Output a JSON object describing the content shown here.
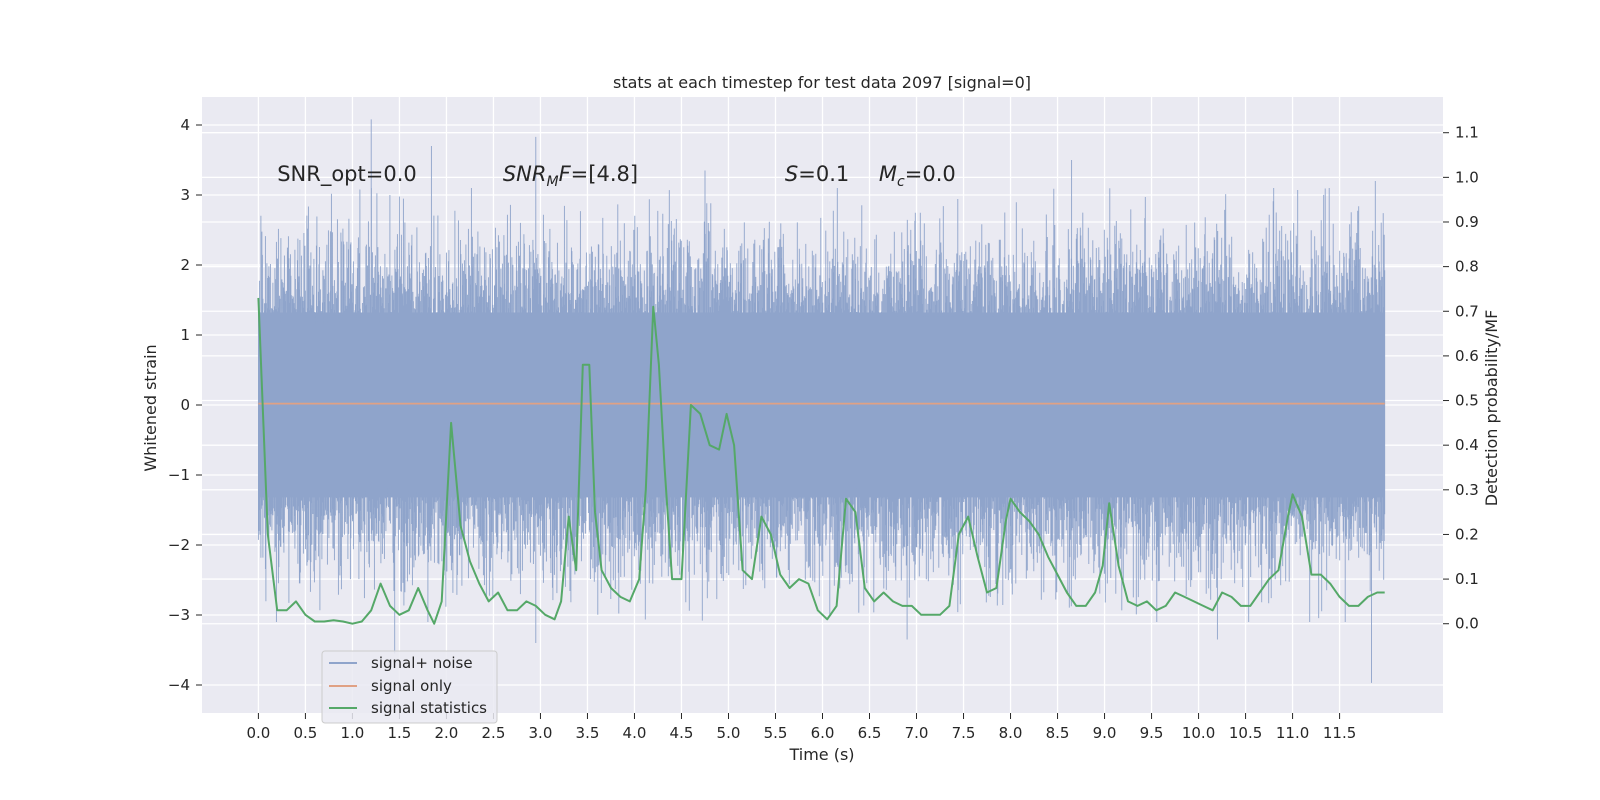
{
  "chart_data": {
    "type": "line",
    "title": "stats at each timestep for test data 2097 [signal=0]",
    "xlabel": "Time (s)",
    "ylabel": "Whitened strain",
    "ylabel_right": "Detection probability/MF",
    "xlim": [
      -0.6,
      12.6
    ],
    "ylim": [
      -4.4,
      4.4
    ],
    "ylim_right": [
      -0.2,
      1.18
    ],
    "x_ticks": [
      0.0,
      0.5,
      1.0,
      1.5,
      2.0,
      2.5,
      3.0,
      3.5,
      4.0,
      4.5,
      5.0,
      5.5,
      6.0,
      6.5,
      7.0,
      7.5,
      8.0,
      8.5,
      9.0,
      9.5,
      10.0,
      10.5,
      11.0,
      11.5
    ],
    "x_tick_labels": [
      "0.0",
      "0.5",
      "1.0",
      "1.5",
      "2.0",
      "2.5",
      "3.0",
      "3.5",
      "4.0",
      "4.5",
      "5.0",
      "5.5",
      "6.0",
      "6.5",
      "7.0",
      "7.5",
      "8.0",
      "8.5",
      "9.0",
      "9.5",
      "10.0",
      "10.5",
      "11.0",
      "11.5"
    ],
    "y_ticks": [
      -4,
      -3,
      -2,
      -1,
      0,
      1,
      2,
      3,
      4
    ],
    "y_tick_labels": [
      "−4",
      "−3",
      "−2",
      "−1",
      "0",
      "1",
      "2",
      "3",
      "4"
    ],
    "y_right_ticks": [
      0.0,
      0.1,
      0.2,
      0.3,
      0.4,
      0.5,
      0.6,
      0.7,
      0.8,
      0.9,
      1.0,
      1.1
    ],
    "y_right_tick_labels": [
      "0.0",
      "0.1",
      "0.2",
      "0.3",
      "0.4",
      "0.5",
      "0.6",
      "0.7",
      "0.8",
      "0.9",
      "1.0",
      "1.1"
    ],
    "grid": true,
    "legend_position": "lower-left",
    "annotations": [
      {
        "text": "SNR_opt=0.0",
        "x": 0.2,
        "y": 3.2
      },
      {
        "text": "SNR_MF=[4.8]",
        "x": 2.6,
        "y": 3.2
      },
      {
        "text": "S=0.1",
        "x": 5.6,
        "y": 3.2
      },
      {
        "text": "M_c=0.0",
        "x": 6.6,
        "y": 3.2
      }
    ],
    "series": [
      {
        "name": "signal+ noise",
        "axis": "left",
        "color": "#8fa4cb",
        "t_start": 0.0,
        "t_end": 11.98,
        "band_typical": [
          -1.9,
          1.9
        ],
        "extreme_min": -3.97,
        "extreme_max": 4.08,
        "peaks": [
          {
            "x": 1.2,
            "y": 4.08
          },
          {
            "x": 1.84,
            "y": 3.7
          },
          {
            "x": 2.95,
            "y": 3.83
          },
          {
            "x": 4.75,
            "y": 3.35
          },
          {
            "x": 8.65,
            "y": 3.5
          },
          {
            "x": 11.88,
            "y": 3.2
          },
          {
            "x": 1.45,
            "y": -3.55
          },
          {
            "x": 2.95,
            "y": -3.4
          },
          {
            "x": 6.9,
            "y": -3.35
          },
          {
            "x": 10.2,
            "y": -3.35
          },
          {
            "x": 11.84,
            "y": -3.97
          }
        ]
      },
      {
        "name": "signal only",
        "axis": "left",
        "color": "#e0a184",
        "x": [
          0.0,
          11.98
        ],
        "y": [
          0.02,
          0.02
        ]
      },
      {
        "name": "signal statistics",
        "axis": "right",
        "color": "#55a868",
        "x": [
          0.0,
          0.1,
          0.2,
          0.3,
          0.4,
          0.5,
          0.6,
          0.7,
          0.8,
          0.9,
          1.0,
          1.1,
          1.2,
          1.3,
          1.4,
          1.5,
          1.6,
          1.7,
          1.8,
          1.87,
          1.95,
          2.05,
          2.15,
          2.25,
          2.35,
          2.45,
          2.55,
          2.65,
          2.75,
          2.85,
          2.95,
          3.05,
          3.15,
          3.22,
          3.3,
          3.38,
          3.45,
          3.52,
          3.58,
          3.65,
          3.75,
          3.85,
          3.95,
          4.05,
          4.12,
          4.2,
          4.26,
          4.32,
          4.4,
          4.5,
          4.6,
          4.7,
          4.8,
          4.9,
          4.98,
          5.06,
          5.15,
          5.25,
          5.35,
          5.45,
          5.55,
          5.65,
          5.75,
          5.85,
          5.95,
          6.05,
          6.15,
          6.25,
          6.35,
          6.45,
          6.55,
          6.65,
          6.75,
          6.85,
          6.95,
          7.05,
          7.15,
          7.25,
          7.35,
          7.45,
          7.55,
          7.65,
          7.75,
          7.85,
          7.95,
          8.0,
          8.1,
          8.2,
          8.3,
          8.4,
          8.5,
          8.6,
          8.7,
          8.8,
          8.9,
          8.98,
          9.05,
          9.15,
          9.25,
          9.35,
          9.45,
          9.55,
          9.65,
          9.75,
          9.85,
          9.95,
          10.05,
          10.15,
          10.25,
          10.35,
          10.45,
          10.55,
          10.65,
          10.75,
          10.85,
          10.95,
          11.0,
          11.1,
          11.2,
          11.3,
          11.4,
          11.5,
          11.6,
          11.7,
          11.8,
          11.9,
          11.98
        ],
        "y": [
          0.73,
          0.2,
          0.03,
          0.03,
          0.05,
          0.02,
          0.005,
          0.005,
          0.008,
          0.005,
          0.0,
          0.005,
          0.03,
          0.09,
          0.04,
          0.02,
          0.03,
          0.08,
          0.03,
          0.0,
          0.05,
          0.45,
          0.22,
          0.14,
          0.09,
          0.05,
          0.07,
          0.03,
          0.03,
          0.05,
          0.04,
          0.02,
          0.01,
          0.05,
          0.24,
          0.12,
          0.58,
          0.58,
          0.25,
          0.12,
          0.08,
          0.06,
          0.05,
          0.1,
          0.3,
          0.71,
          0.58,
          0.35,
          0.1,
          0.1,
          0.49,
          0.47,
          0.4,
          0.39,
          0.47,
          0.4,
          0.12,
          0.1,
          0.24,
          0.2,
          0.11,
          0.08,
          0.1,
          0.09,
          0.03,
          0.01,
          0.04,
          0.28,
          0.25,
          0.08,
          0.05,
          0.07,
          0.05,
          0.04,
          0.04,
          0.02,
          0.02,
          0.02,
          0.04,
          0.2,
          0.24,
          0.15,
          0.07,
          0.08,
          0.23,
          0.28,
          0.25,
          0.23,
          0.2,
          0.15,
          0.11,
          0.07,
          0.04,
          0.04,
          0.07,
          0.13,
          0.27,
          0.13,
          0.05,
          0.04,
          0.05,
          0.03,
          0.04,
          0.07,
          0.06,
          0.05,
          0.04,
          0.03,
          0.07,
          0.06,
          0.04,
          0.04,
          0.07,
          0.1,
          0.12,
          0.24,
          0.29,
          0.24,
          0.11,
          0.11,
          0.09,
          0.06,
          0.04,
          0.04,
          0.06,
          0.07,
          0.07
        ]
      }
    ]
  }
}
